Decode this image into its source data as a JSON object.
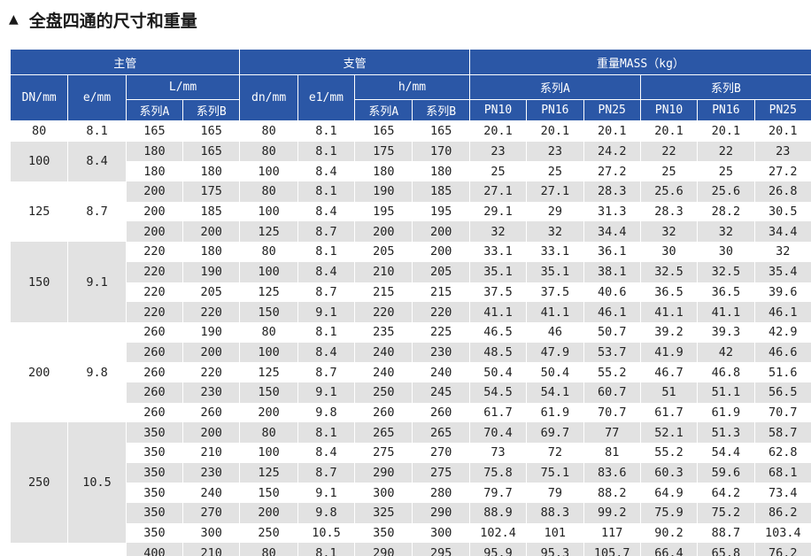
{
  "title": {
    "icon": "triangle-up-icon",
    "text": "全盘四通的尺寸和重量"
  },
  "header": {
    "main_pipe": "主管",
    "branch_pipe": "支管",
    "weight": "重量MASS（kg）",
    "dn": "DN/mm",
    "e": "e/mm",
    "L": "L/mm",
    "dn_small": "dn/mm",
    "e1": "e1/mm",
    "h": "h/mm",
    "series_a": "系列A",
    "series_b": "系列B",
    "pn10": "PN10",
    "pn16": "PN16",
    "pn25": "PN25"
  },
  "groups": [
    {
      "dn": "80",
      "e": "8.1",
      "rows": [
        [
          "165",
          "165",
          "80",
          "8.1",
          "165",
          "165",
          "20.1",
          "20.1",
          "20.1",
          "20.1",
          "20.1",
          "20.1"
        ]
      ]
    },
    {
      "dn": "100",
      "e": "8.4",
      "rows": [
        [
          "180",
          "165",
          "80",
          "8.1",
          "175",
          "170",
          "23",
          "23",
          "24.2",
          "22",
          "22",
          "23"
        ],
        [
          "180",
          "180",
          "100",
          "8.4",
          "180",
          "180",
          "25",
          "25",
          "27.2",
          "25",
          "25",
          "27.2"
        ]
      ]
    },
    {
      "dn": "125",
      "e": "8.7",
      "rows": [
        [
          "200",
          "175",
          "80",
          "8.1",
          "190",
          "185",
          "27.1",
          "27.1",
          "28.3",
          "25.6",
          "25.6",
          "26.8"
        ],
        [
          "200",
          "185",
          "100",
          "8.4",
          "195",
          "195",
          "29.1",
          "29",
          "31.3",
          "28.3",
          "28.2",
          "30.5"
        ],
        [
          "200",
          "200",
          "125",
          "8.7",
          "200",
          "200",
          "32",
          "32",
          "34.4",
          "32",
          "32",
          "34.4"
        ]
      ]
    },
    {
      "dn": "150",
      "e": "9.1",
      "rows": [
        [
          "220",
          "180",
          "80",
          "8.1",
          "205",
          "200",
          "33.1",
          "33.1",
          "36.1",
          "30",
          "30",
          "32"
        ],
        [
          "220",
          "190",
          "100",
          "8.4",
          "210",
          "205",
          "35.1",
          "35.1",
          "38.1",
          "32.5",
          "32.5",
          "35.4"
        ],
        [
          "220",
          "205",
          "125",
          "8.7",
          "215",
          "215",
          "37.5",
          "37.5",
          "40.6",
          "36.5",
          "36.5",
          "39.6"
        ],
        [
          "220",
          "220",
          "150",
          "9.1",
          "220",
          "220",
          "41.1",
          "41.1",
          "46.1",
          "41.1",
          "41.1",
          "46.1"
        ]
      ]
    },
    {
      "dn": "200",
      "e": "9.8",
      "rows": [
        [
          "260",
          "190",
          "80",
          "8.1",
          "235",
          "225",
          "46.5",
          "46",
          "50.7",
          "39.2",
          "39.3",
          "42.9"
        ],
        [
          "260",
          "200",
          "100",
          "8.4",
          "240",
          "230",
          "48.5",
          "47.9",
          "53.7",
          "41.9",
          "42",
          "46.6"
        ],
        [
          "260",
          "220",
          "125",
          "8.7",
          "240",
          "240",
          "50.4",
          "50.4",
          "55.2",
          "46.7",
          "46.8",
          "51.6"
        ],
        [
          "260",
          "230",
          "150",
          "9.1",
          "250",
          "245",
          "54.5",
          "54.1",
          "60.7",
          "51",
          "51.1",
          "56.5"
        ],
        [
          "260",
          "260",
          "200",
          "9.8",
          "260",
          "260",
          "61.7",
          "61.9",
          "70.7",
          "61.7",
          "61.9",
          "70.7"
        ]
      ]
    },
    {
      "dn": "250",
      "e": "10.5",
      "rows": [
        [
          "350",
          "200",
          "80",
          "8.1",
          "265",
          "265",
          "70.4",
          "69.7",
          "77",
          "52.1",
          "51.3",
          "58.7"
        ],
        [
          "350",
          "210",
          "100",
          "8.4",
          "275",
          "270",
          "73",
          "72",
          "81",
          "55.2",
          "54.4",
          "62.8"
        ],
        [
          "350",
          "230",
          "125",
          "8.7",
          "290",
          "275",
          "75.8",
          "75.1",
          "83.6",
          "60.3",
          "59.6",
          "68.1"
        ],
        [
          "350",
          "240",
          "150",
          "9.1",
          "300",
          "280",
          "79.7",
          "79",
          "88.2",
          "64.9",
          "64.2",
          "73.4"
        ],
        [
          "350",
          "270",
          "200",
          "9.8",
          "325",
          "290",
          "88.9",
          "88.3",
          "99.2",
          "75.9",
          "75.2",
          "86.2"
        ],
        [
          "350",
          "300",
          "250",
          "10.5",
          "350",
          "300",
          "102.4",
          "101",
          "117",
          "90.2",
          "88.7",
          "103.4"
        ]
      ]
    },
    {
      "dn": "",
      "e": "",
      "rows": [
        [
          "400",
          "210",
          "80",
          "8.1",
          "290",
          "295",
          "95.9",
          "95.3",
          "105.7",
          "66.4",
          "65.8",
          "76.2"
        ]
      ]
    }
  ]
}
